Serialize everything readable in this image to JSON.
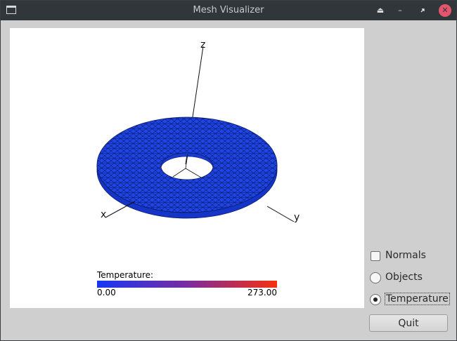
{
  "window": {
    "title": "Mesh Visualizer",
    "buttons": [
      "keep-above",
      "minimize",
      "maximize",
      "close"
    ]
  },
  "viewport": {
    "axes": {
      "x": "x",
      "y": "y",
      "z": "z"
    },
    "legend": {
      "title": "Temperature:",
      "min": "0.00",
      "max": "273.00",
      "colors": {
        "low": "#1536f5",
        "mid": "#7a2ca0",
        "high": "#f5300f"
      }
    },
    "mesh_color": "#1f45e6"
  },
  "controls": {
    "normals": {
      "label": "Normals",
      "checked": false
    },
    "objects": {
      "label": "Objects",
      "selected": false
    },
    "temperature": {
      "label": "Temperature",
      "selected": true
    },
    "quit_label": "Quit"
  }
}
